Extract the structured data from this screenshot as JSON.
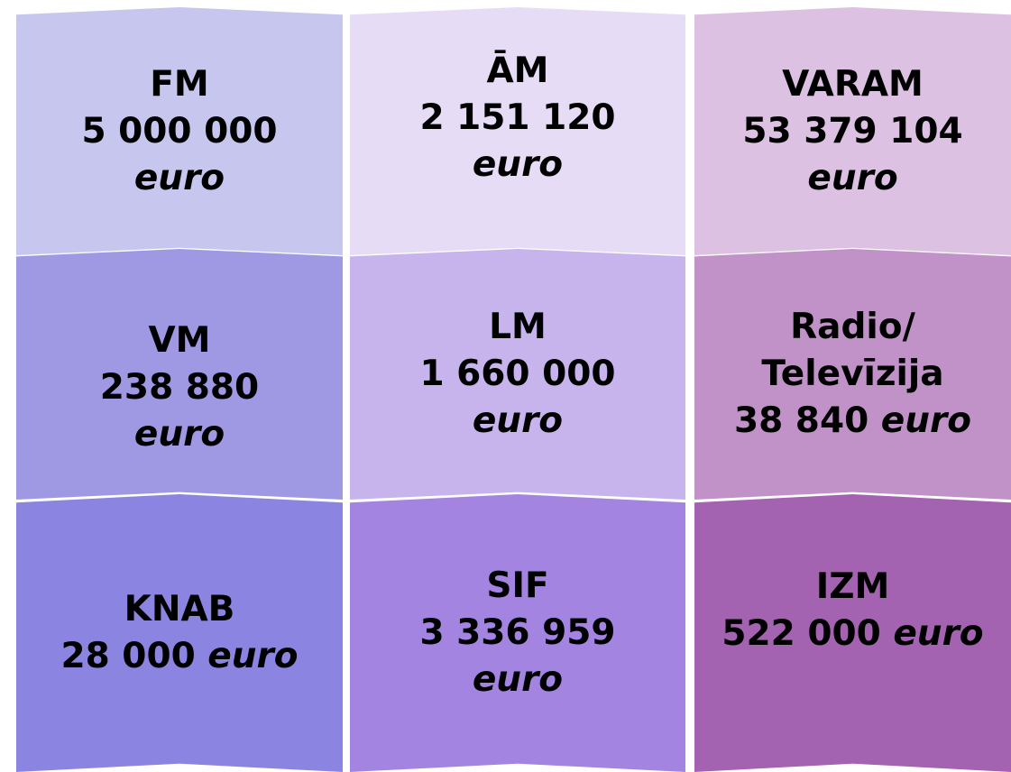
{
  "tiles": [
    {
      "name": "FM",
      "amount": "5 000 000",
      "unit": "euro"
    },
    {
      "name": "ĀM",
      "amount": "2 151 120",
      "unit": "euro"
    },
    {
      "name": "VARAM",
      "amount": "53 379 104",
      "unit": "euro"
    },
    {
      "name": "VM",
      "amount": "238 880",
      "unit": "euro"
    },
    {
      "name": "LM",
      "amount": "1 660 000",
      "unit": "euro"
    },
    {
      "name": "Radio/ Televīzija",
      "amount": "38 840",
      "unit": "euro"
    },
    {
      "name": "KNAB",
      "amount": "28 000",
      "unit": "euro"
    },
    {
      "name": "SIF",
      "amount": "3 336 959",
      "unit": "euro"
    },
    {
      "name": "IZM",
      "amount": "522 000",
      "unit": "euro"
    }
  ]
}
